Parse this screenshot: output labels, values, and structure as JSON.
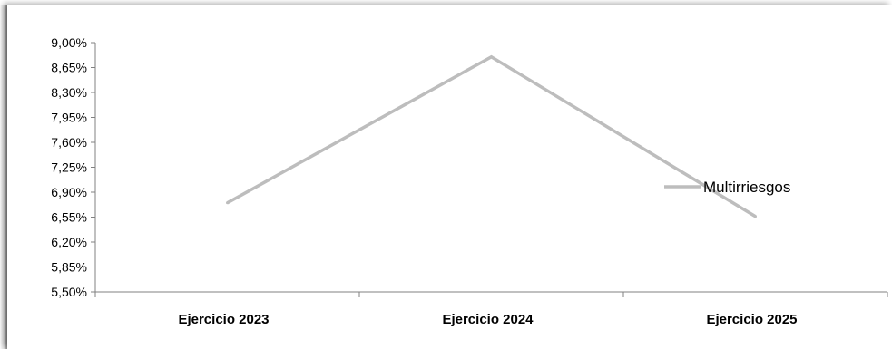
{
  "chart_data": {
    "type": "line",
    "title": "",
    "xlabel": "",
    "ylabel": "",
    "categories": [
      "Ejercicio 2023",
      "Ejercicio 2024",
      "Ejercicio 2025"
    ],
    "series": [
      {
        "name": "Multirriesgos",
        "values": [
          6.75,
          8.8,
          6.56
        ],
        "color": "#bdbdbd"
      }
    ],
    "y_ticks": [
      "9,00%",
      "8,65%",
      "8,30%",
      "7,95%",
      "7,60%",
      "7,25%",
      "6,90%",
      "6,55%",
      "6,20%",
      "5,85%",
      "5,50%"
    ],
    "ylim": [
      5.5,
      9.0
    ],
    "grid": false,
    "legend": "right"
  }
}
